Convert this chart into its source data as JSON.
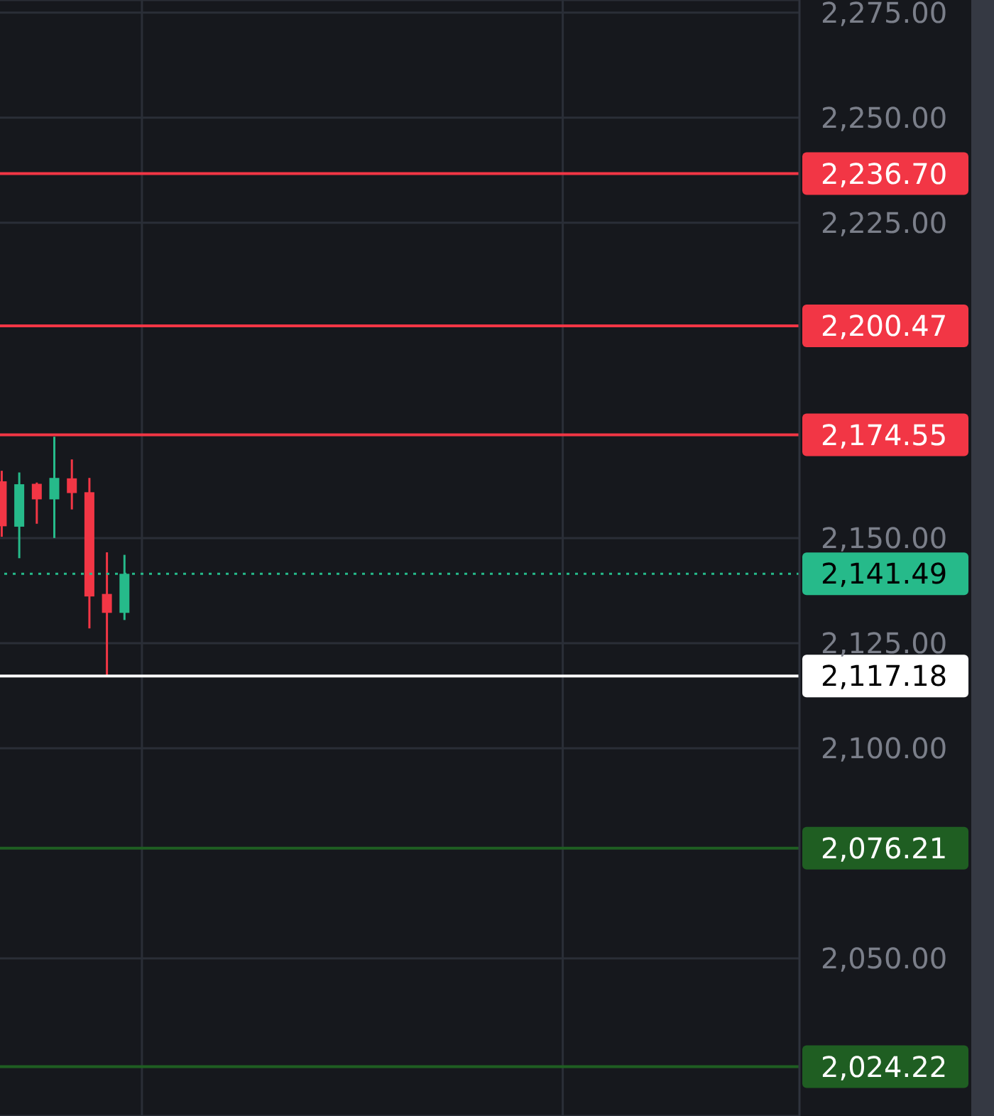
{
  "chart_data": {
    "type": "candlestick",
    "categories": [
      null,
      null,
      null,
      null,
      null,
      null,
      null,
      null,
      null,
      null,
      null,
      null,
      null,
      null,
      null,
      null,
      null,
      null,
      null,
      null,
      null,
      null,
      null,
      null,
      null,
      null,
      null,
      null,
      null,
      null,
      null,
      null,
      null,
      null,
      null,
      null,
      null,
      null,
      null,
      null,
      null,
      null,
      null,
      null,
      null,
      null
    ],
    "ohlc": [
      [
        2163.5,
        2166.0,
        2150.3,
        2152.8
      ],
      [
        2152.7,
        2165.6,
        2145.2,
        2162.8
      ],
      [
        2162.9,
        2163.2,
        2153.4,
        2159.2
      ],
      [
        2159.2,
        2174.1,
        2150.0,
        2164.3
      ],
      [
        2164.2,
        2168.7,
        2156.8,
        2160.7
      ],
      [
        2160.9,
        2164.3,
        2128.5,
        2136.1
      ],
      [
        2136.7,
        2146.6,
        2117.18,
        2132.2
      ],
      [
        2132.2,
        2146.0,
        2130.5,
        2141.49
      ],
      null,
      null,
      null,
      null,
      null,
      null,
      null,
      null,
      null,
      null,
      null,
      null,
      null,
      null,
      null,
      null,
      null,
      null,
      null,
      null,
      null,
      null,
      null,
      null,
      null,
      null,
      null,
      null,
      null,
      null,
      null,
      null,
      null,
      null,
      null,
      null,
      null,
      null
    ],
    "colors": [
      "#f23645",
      "#26ba8a",
      "#f23645",
      "#26ba8a",
      "#f23645",
      "#f23645",
      "#f23645",
      "#26ba8a",
      null,
      null,
      null,
      null,
      null,
      null,
      null,
      null,
      null,
      null,
      null,
      null,
      null,
      null,
      null,
      null,
      null,
      null,
      null,
      null,
      null,
      null,
      null,
      null,
      null,
      null,
      null,
      null,
      null,
      null,
      null,
      null,
      null,
      null,
      null,
      null,
      null,
      null
    ],
    "ylim": [
      2012.5,
      2278
    ],
    "yticks": [
      {
        "value": 2050,
        "label": "2,050.00"
      },
      {
        "value": 2100,
        "label": "2,100.00"
      },
      {
        "value": 2125,
        "label": "2,125.00"
      },
      {
        "value": 2150,
        "label": "2,150.00"
      },
      {
        "value": 2225,
        "label": "2,225.00"
      },
      {
        "value": 2250,
        "label": "2,250.00"
      },
      {
        "value": 2275,
        "label": "2,275.00"
      }
    ],
    "tick_labels": "y",
    "grid": true,
    "ref_lines": [
      {
        "axis": "y",
        "value": 2236.7,
        "label": "2,236.70",
        "color": "#f23645"
      },
      {
        "axis": "y",
        "value": 2200.47,
        "label": "2,200.47",
        "color": "#f23645"
      },
      {
        "axis": "y",
        "value": 2174.55,
        "label": "2,174.55",
        "color": "#f23645"
      },
      {
        "axis": "y",
        "value": 2141.49,
        "label": "2,141.49",
        "color": "#26ba8a",
        "line_style": "dotted"
      },
      {
        "axis": "y",
        "value": 2117.18,
        "label": "2,117.18",
        "color": "#ffffff"
      },
      {
        "axis": "y",
        "value": 2076.21,
        "label": "2,076.21",
        "color": "#1f5e22"
      },
      {
        "axis": "y",
        "value": 2024.22,
        "label": "2,024.22",
        "color": "#1f5e22"
      }
    ]
  }
}
